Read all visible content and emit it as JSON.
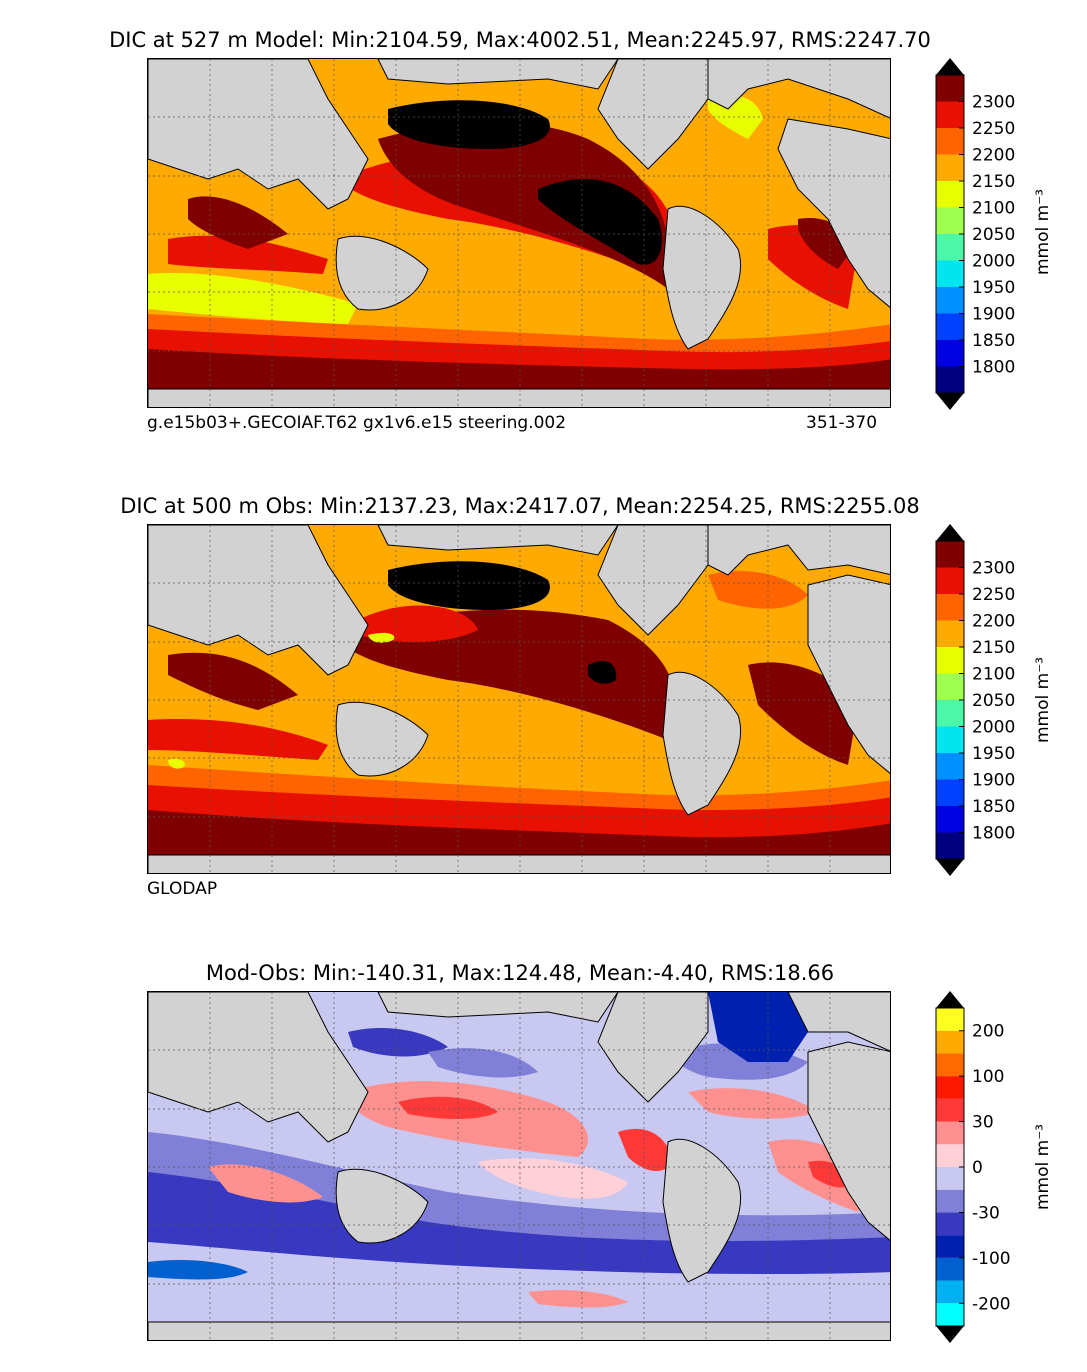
{
  "panels": [
    {
      "id": "model",
      "title": "DIC at 527 m Model: Min:2104.59, Max:4002.51, Mean:2245.97, RMS:2247.70",
      "caption_left": "g.e15b03+.GECOIAF.T62 gx1v6.e15 steering.002",
      "caption_right": "351-370",
      "unit": "mmol m⁻³",
      "colorbar": {
        "colors": [
          "#00007f",
          "#0000e0",
          "#0040ff",
          "#0090ff",
          "#00e5f0",
          "#4cf7a8",
          "#9eff50",
          "#e8ff00",
          "#ffaa00",
          "#ff6400",
          "#e81000",
          "#7f0000"
        ],
        "ticks": [
          "1800",
          "1850",
          "1900",
          "1950",
          "2000",
          "2050",
          "2100",
          "2150",
          "2200",
          "2250",
          "2300"
        ]
      }
    },
    {
      "id": "obs",
      "title": "DIC at 500 m Obs: Min:2137.23, Max:2417.07, Mean:2254.25, RMS:2255.08",
      "caption_left": "GLODAP",
      "caption_right": "",
      "unit": "mmol m⁻³",
      "colorbar": {
        "colors": [
          "#00007f",
          "#0000e0",
          "#0040ff",
          "#0090ff",
          "#00e5f0",
          "#4cf7a8",
          "#9eff50",
          "#e8ff00",
          "#ffaa00",
          "#ff6400",
          "#e81000",
          "#7f0000"
        ],
        "ticks": [
          "1800",
          "1850",
          "1900",
          "1950",
          "2000",
          "2050",
          "2100",
          "2150",
          "2200",
          "2250",
          "2300"
        ]
      }
    },
    {
      "id": "diff",
      "title": "Mod-Obs: Min:-140.31, Max:124.48, Mean:-4.40, RMS:18.66",
      "caption_left": "",
      "caption_right": "",
      "unit": "mmol m⁻³",
      "colorbar": {
        "colors": [
          "#00ffff",
          "#00b0f0",
          "#0060d0",
          "#0020b0",
          "#3838c0",
          "#8080d8",
          "#c8c8f0",
          "#ffd0d8",
          "#ff9090",
          "#ff3838",
          "#ff1800",
          "#ff6a00",
          "#ffaa00",
          "#ffff20"
        ],
        "ticks": [
          "-200",
          "-100",
          "-30",
          "0",
          "30",
          "100",
          "200"
        ]
      }
    }
  ],
  "colors": {
    "land": "#d2d2d2",
    "missing": "#ffffff",
    "extreme_high": "#000000"
  }
}
